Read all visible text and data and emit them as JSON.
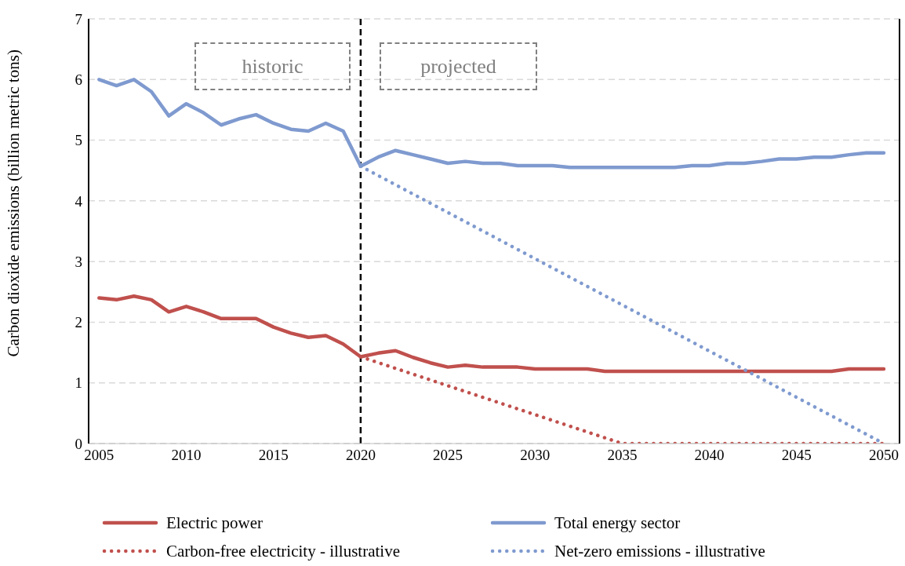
{
  "chart_data": {
    "type": "line",
    "ylabel": "Carbon dioxide emissions (billion metric tons)",
    "xlim": [
      2004.4,
      2050.9
    ],
    "xticks": [
      2005,
      2010,
      2015,
      2020,
      2025,
      2030,
      2035,
      2040,
      2045,
      2050
    ],
    "ylim": [
      0,
      7
    ],
    "yticks": [
      0,
      1,
      2,
      3,
      4,
      5,
      6,
      7
    ],
    "grid": "y",
    "legend": "bottom",
    "marker": "none",
    "ref_lines": [
      {
        "axis": "x",
        "value": 2020,
        "color": "#000000",
        "line_style": "dashed"
      }
    ],
    "annotations": [
      "historic",
      "projected"
    ],
    "series": [
      {
        "name": "Electric power",
        "color": "#c0504d",
        "line_style": "solid",
        "x": [
          2005,
          2006,
          2007,
          2008,
          2009,
          2010,
          2011,
          2012,
          2013,
          2014,
          2015,
          2016,
          2017,
          2018,
          2019,
          2020,
          2021,
          2022,
          2023,
          2024,
          2025,
          2026,
          2027,
          2028,
          2029,
          2030,
          2031,
          2032,
          2033,
          2034,
          2035,
          2036,
          2037,
          2038,
          2039,
          2040,
          2041,
          2042,
          2043,
          2044,
          2045,
          2046,
          2047,
          2048,
          2049,
          2050
        ],
        "values": [
          2.4,
          2.37,
          2.43,
          2.37,
          2.17,
          2.26,
          2.17,
          2.06,
          2.06,
          2.06,
          1.92,
          1.82,
          1.75,
          1.78,
          1.64,
          1.43,
          1.49,
          1.53,
          1.42,
          1.33,
          1.26,
          1.29,
          1.26,
          1.26,
          1.26,
          1.23,
          1.23,
          1.23,
          1.23,
          1.19,
          1.19,
          1.19,
          1.19,
          1.19,
          1.19,
          1.19,
          1.19,
          1.19,
          1.19,
          1.19,
          1.19,
          1.19,
          1.19,
          1.23,
          1.23,
          1.23
        ]
      },
      {
        "name": "Total energy sector",
        "color": "#7f9acf",
        "line_style": "solid",
        "x": [
          2005,
          2006,
          2007,
          2008,
          2009,
          2010,
          2011,
          2012,
          2013,
          2014,
          2015,
          2016,
          2017,
          2018,
          2019,
          2020,
          2021,
          2022,
          2023,
          2024,
          2025,
          2026,
          2027,
          2028,
          2029,
          2030,
          2031,
          2032,
          2033,
          2034,
          2035,
          2036,
          2037,
          2038,
          2039,
          2040,
          2041,
          2042,
          2043,
          2044,
          2045,
          2046,
          2047,
          2048,
          2049,
          2050
        ],
        "values": [
          6.0,
          5.9,
          6.0,
          5.8,
          5.4,
          5.6,
          5.45,
          5.25,
          5.35,
          5.42,
          5.28,
          5.18,
          5.15,
          5.28,
          5.15,
          4.57,
          4.72,
          4.83,
          4.76,
          4.69,
          4.62,
          4.65,
          4.62,
          4.62,
          4.58,
          4.58,
          4.58,
          4.55,
          4.55,
          4.55,
          4.55,
          4.55,
          4.55,
          4.55,
          4.58,
          4.58,
          4.62,
          4.62,
          4.65,
          4.69,
          4.69,
          4.72,
          4.72,
          4.76,
          4.79,
          4.79
        ]
      },
      {
        "name": "Carbon-free electricity - illustrative",
        "color": "#c0504d",
        "line_style": "dotted",
        "x": [
          2020,
          2035,
          2050
        ],
        "values": [
          1.43,
          0,
          0
        ]
      },
      {
        "name": "Net-zero emissions - illustrative",
        "color": "#7f9acf",
        "line_style": "dotted",
        "x": [
          2020,
          2050
        ],
        "values": [
          4.57,
          0
        ]
      }
    ]
  }
}
